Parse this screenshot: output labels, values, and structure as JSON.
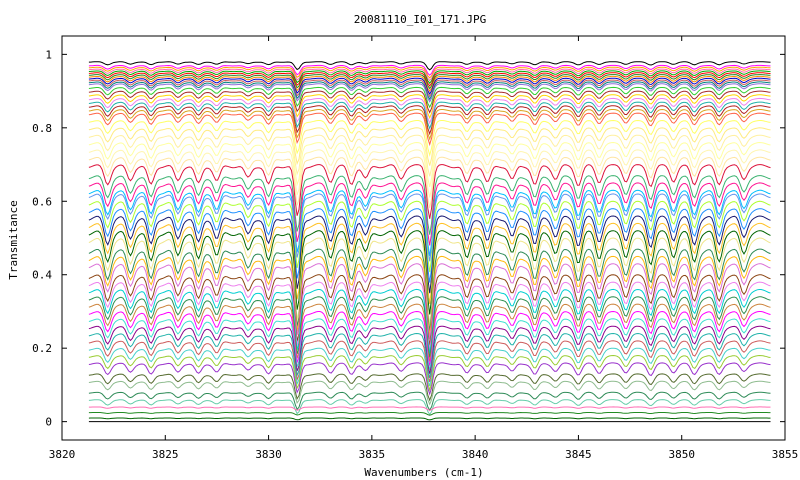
{
  "chart_data": {
    "type": "line",
    "title": "20081110_I01_171.JPG",
    "xlabel": "Wavenumbers (cm-1)",
    "ylabel": "Transmitance",
    "xlim": [
      3820,
      3855
    ],
    "ylim": [
      -0.05,
      1.05
    ],
    "x_ticks": [
      "3820",
      "3825",
      "3830",
      "3835",
      "3840",
      "3845",
      "3850",
      "3855"
    ],
    "y_ticks": [
      "0",
      "0.2",
      "0.4",
      "0.6",
      "0.8",
      "1"
    ],
    "grid": false,
    "legend": "none",
    "x_range_of_data": [
      3821.3,
      3854.3
    ],
    "absorption_lines_cm1": [
      3822.2,
      3823.3,
      3824.3,
      3825.6,
      3826.6,
      3827.5,
      3829.0,
      3830.0,
      3831.4,
      3833.0,
      3834.0,
      3834.7,
      3836.4,
      3837.8,
      3839.6,
      3840.6,
      3841.8,
      3842.9,
      3843.9,
      3845.0,
      3846.0,
      3847.3,
      3848.5,
      3849.6,
      3850.6,
      3851.8,
      3853.0
    ],
    "strong_absorption_lines_cm1": [
      3831.4,
      3837.8
    ],
    "series_baselines": [
      0.98,
      0.97,
      0.965,
      0.96,
      0.955,
      0.95,
      0.945,
      0.94,
      0.935,
      0.93,
      0.925,
      0.92,
      0.91,
      0.9,
      0.89,
      0.88,
      0.87,
      0.86,
      0.85,
      0.84,
      0.82,
      0.8,
      0.78,
      0.76,
      0.74,
      0.72,
      0.7,
      0.67,
      0.65,
      0.63,
      0.62,
      0.6,
      0.58,
      0.56,
      0.54,
      0.52,
      0.5,
      0.47,
      0.45,
      0.43,
      0.4,
      0.38,
      0.36,
      0.34,
      0.32,
      0.3,
      0.28,
      0.26,
      0.24,
      0.22,
      0.2,
      0.18,
      0.16,
      0.13,
      0.11,
      0.08,
      0.06,
      0.04,
      0.025,
      0.01,
      0.0
    ],
    "series_colors": [
      "#000000",
      "#ff00ff",
      "#ffa500",
      "#ff69b4",
      "#00aa00",
      "#ff0000",
      "#228b22",
      "#ff8c00",
      "#0000cd",
      "#cd5c5c",
      "#008080",
      "#9370db",
      "#32cd32",
      "#a52a2a",
      "#ffd700",
      "#ee82ee",
      "#20b2aa",
      "#b22222",
      "#daa520",
      "#ff6347",
      "#ffff66",
      "#ffeb80",
      "#fff0a0",
      "#ffffa0",
      "#fff5b0",
      "#ffe5a0",
      "#dc143c",
      "#3cb371",
      "#ff1493",
      "#00bfff",
      "#6495ed",
      "#adff2f",
      "#1e90ff",
      "#191970",
      "#ffc125",
      "#006400",
      "#f0e68c",
      "#2e8b57",
      "#ffb90f",
      "#da70d6",
      "#8b4513",
      "#ee82ee",
      "#00ced1",
      "#2f8f4f",
      "#cd853f",
      "#ff00ff",
      "#40e0d0",
      "#8b008b",
      "#20b2aa",
      "#cd5c5c",
      "#48d1cc",
      "#9acd32",
      "#9932cc",
      "#556b2f",
      "#8fbc8f",
      "#2e8b57",
      "#66cdaa",
      "#ff6eb4",
      "#228b22",
      "#006400",
      "#000000"
    ]
  }
}
